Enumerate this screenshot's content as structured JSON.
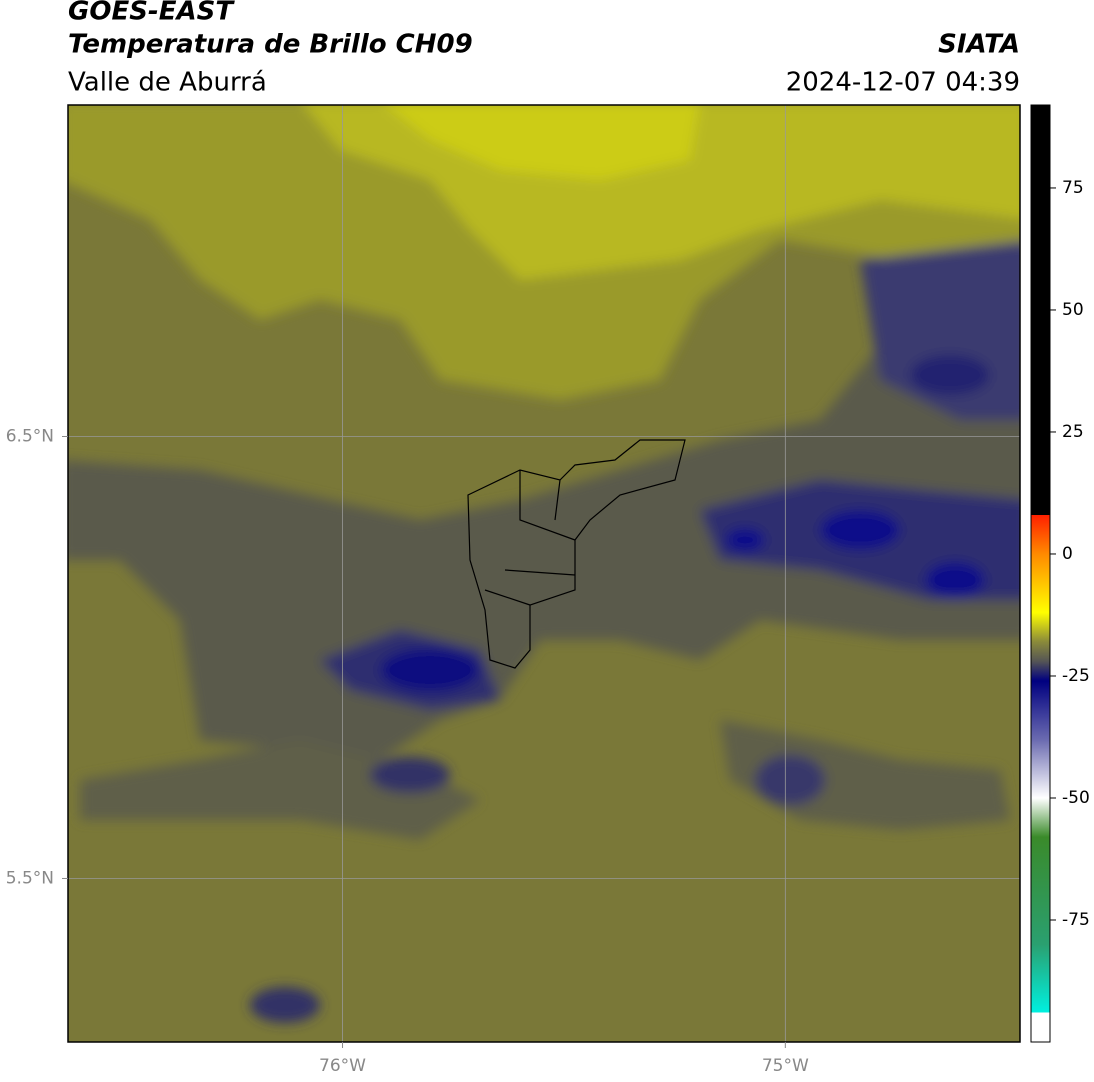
{
  "header": {
    "title": "GOES-EAST",
    "product": "Temperatura de Brillo CH09",
    "region": "Valle de Aburrá",
    "source": "SIATA",
    "datetime": "2024-12-07 04:39"
  },
  "map": {
    "xlim": [
      -76.62,
      -74.47
    ],
    "ylim": [
      5.13,
      7.25
    ],
    "xticks": [
      {
        "value": -76,
        "label": "76°W"
      },
      {
        "value": -75,
        "label": "75°W"
      }
    ],
    "yticks": [
      {
        "value": 6.5,
        "label": "6.5°N"
      },
      {
        "value": 5.5,
        "label": "5.5°N"
      }
    ],
    "grid": true
  },
  "colorbar": {
    "lim": [
      -100,
      92
    ],
    "ticks": [
      75,
      50,
      25,
      0,
      -25,
      -50,
      -75
    ],
    "stops": [
      {
        "value": 92,
        "color": "#000000"
      },
      {
        "value": 8,
        "color": "#000000"
      },
      {
        "value": 8,
        "color": "#ff2000"
      },
      {
        "value": 0,
        "color": "#ff8a00"
      },
      {
        "value": -12,
        "color": "#ffff00"
      },
      {
        "value": -18,
        "color": "#8a8a3a"
      },
      {
        "value": -22,
        "color": "#555555"
      },
      {
        "value": -26,
        "color": "#000080"
      },
      {
        "value": -38,
        "color": "#6a6ab0"
      },
      {
        "value": -50,
        "color": "#ffffff"
      },
      {
        "value": -58,
        "color": "#3a8a2a"
      },
      {
        "value": -80,
        "color": "#2aa070"
      },
      {
        "value": -94,
        "color": "#00f0e0"
      },
      {
        "value": -94,
        "color": "#ffffff"
      },
      {
        "value": -100,
        "color": "#ffffff"
      }
    ]
  }
}
